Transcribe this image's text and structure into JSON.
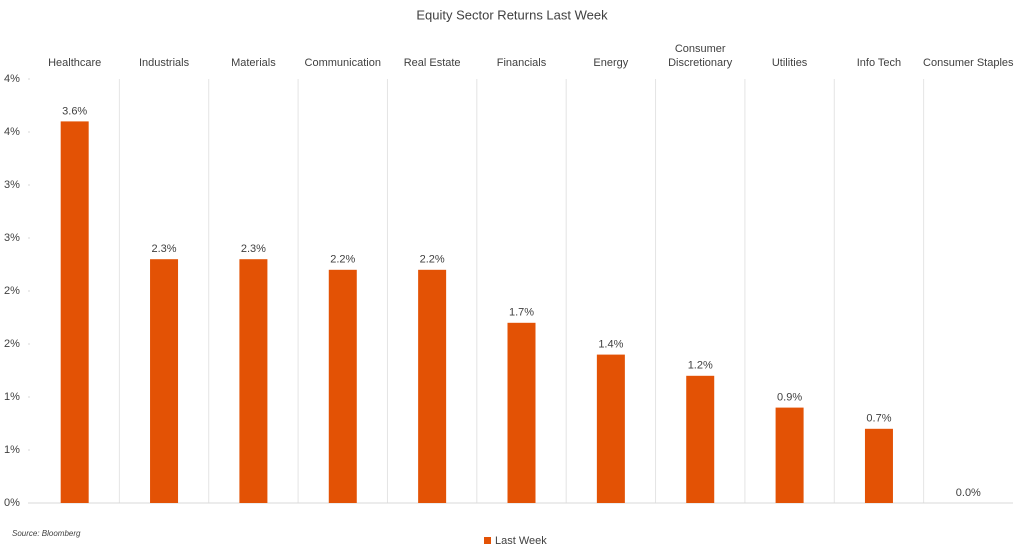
{
  "chart_data": {
    "type": "bar",
    "title": "Equity Sector Returns Last Week",
    "categories": [
      "Healthcare",
      "Industrials",
      "Materials",
      "Communication",
      "Real Estate",
      "Financials",
      "Energy",
      "Consumer Discretionary",
      "Utilities",
      "Info Tech",
      "Consumer Staples"
    ],
    "series": [
      {
        "name": "Last Week",
        "color": "#e35205",
        "values": [
          3.6,
          2.3,
          2.3,
          2.2,
          2.2,
          1.7,
          1.4,
          1.2,
          0.9,
          0.7,
          0.0
        ],
        "value_labels": [
          "3.6%",
          "2.3%",
          "2.3%",
          "2.2%",
          "2.2%",
          "1.7%",
          "1.4%",
          "1.2%",
          "0.9%",
          "0.7%",
          "0.0%"
        ]
      }
    ],
    "ylim": [
      0,
      4
    ],
    "yticks": [
      {
        "value": 0,
        "label": "0%"
      },
      {
        "value": 0.5,
        "label": "1%"
      },
      {
        "value": 1,
        "label": "1%"
      },
      {
        "value": 1.5,
        "label": "2%"
      },
      {
        "value": 2,
        "label": "2%"
      },
      {
        "value": 2.5,
        "label": "3%"
      },
      {
        "value": 3,
        "label": "3%"
      },
      {
        "value": 3.5,
        "label": "4%"
      },
      {
        "value": 4,
        "label": "4%"
      }
    ],
    "legend": "bottom",
    "source": "Source: Bloomberg"
  }
}
